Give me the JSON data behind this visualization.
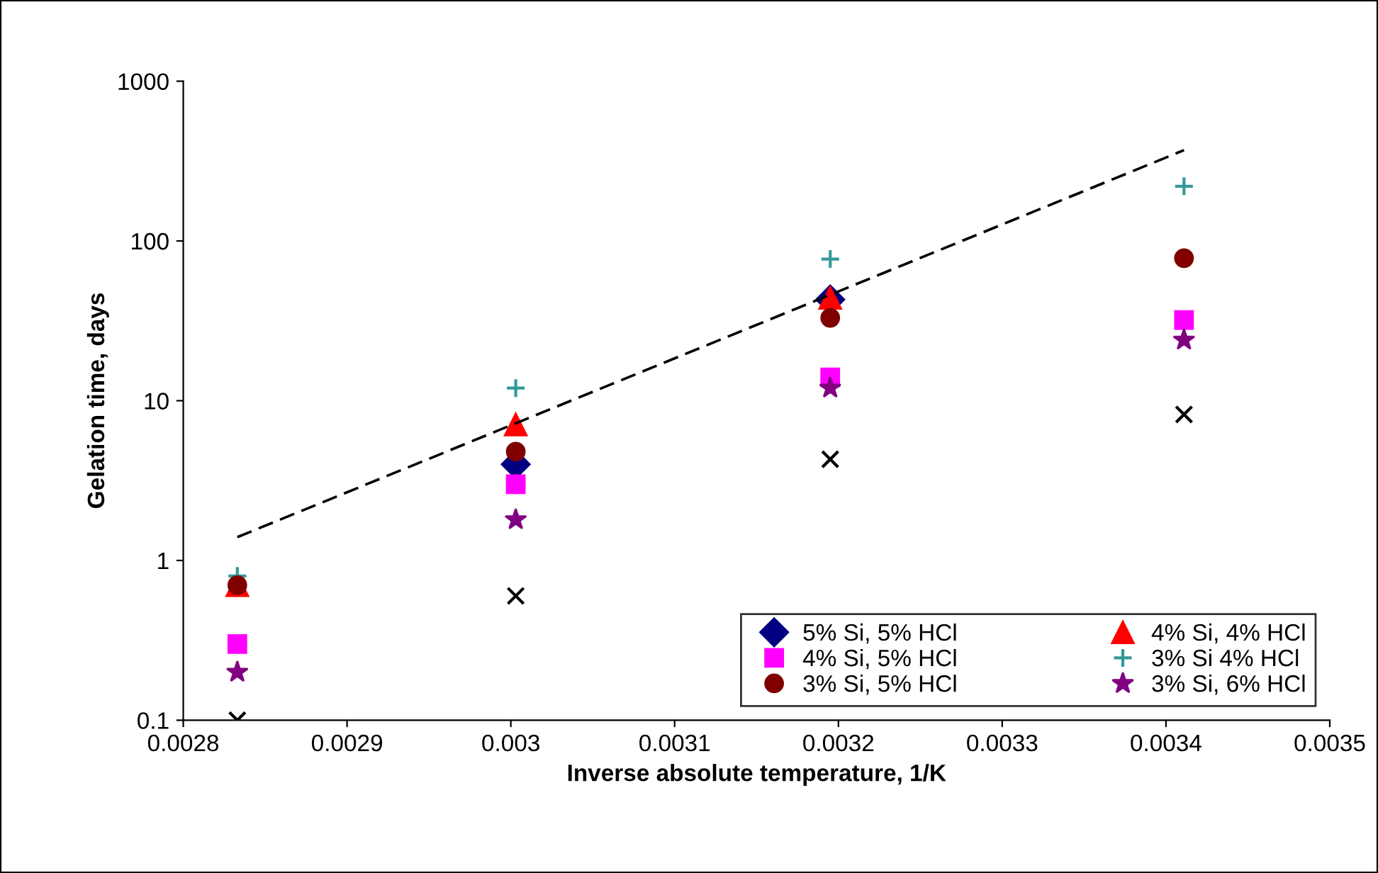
{
  "chart_data": {
    "type": "scatter",
    "xlabel": "Inverse absolute temperature, 1/K",
    "ylabel": "Gelation time, days",
    "x": [
      0.002833,
      0.003003,
      0.003195,
      0.003411
    ],
    "series": [
      {
        "name": "5% Si, 5% HCl",
        "color": "#000080",
        "marker": "diamond",
        "values": [
          null,
          4.0,
          43,
          null
        ]
      },
      {
        "name": "4% Si, 4% HCl",
        "color": "#ff0000",
        "marker": "triangle",
        "values": [
          0.7,
          7.1,
          44,
          null
        ]
      },
      {
        "name": "4% Si, 5% HCl",
        "color": "#ff00ff",
        "marker": "square",
        "values": [
          0.3,
          3.0,
          14,
          32
        ]
      },
      {
        "name": "3% Si 4% HCl",
        "color": "#339999",
        "marker": "plus",
        "values": [
          0.8,
          12,
          77,
          220
        ]
      },
      {
        "name": "3% Si, 5% HCl",
        "color": "#800000",
        "marker": "circle",
        "values": [
          0.7,
          4.8,
          33,
          78
        ]
      },
      {
        "name": "3% Si, 6% HCl",
        "color": "#800080",
        "marker": "star",
        "values": [
          0.2,
          1.8,
          12,
          24
        ]
      },
      {
        "color": "#000000",
        "marker": "cross",
        "values": [
          0.1,
          0.6,
          4.3,
          8.2
        ]
      },
      {
        "type": "line",
        "color": "#000000",
        "line_style": "dashed",
        "marker": "none",
        "x": [
          0.002833,
          0.003411
        ],
        "values": [
          1.4,
          370
        ]
      }
    ],
    "log": "y",
    "xlim": [
      0.0028,
      0.0035
    ],
    "ylim": [
      0.1,
      1000
    ],
    "xticks": [
      0.0028,
      0.0029,
      0.003,
      0.0031,
      0.0032,
      0.0033,
      0.0034,
      0.0035
    ],
    "yticks": [
      0.1,
      1,
      10,
      100,
      1000
    ],
    "grid": false,
    "legend": "bottom right"
  }
}
